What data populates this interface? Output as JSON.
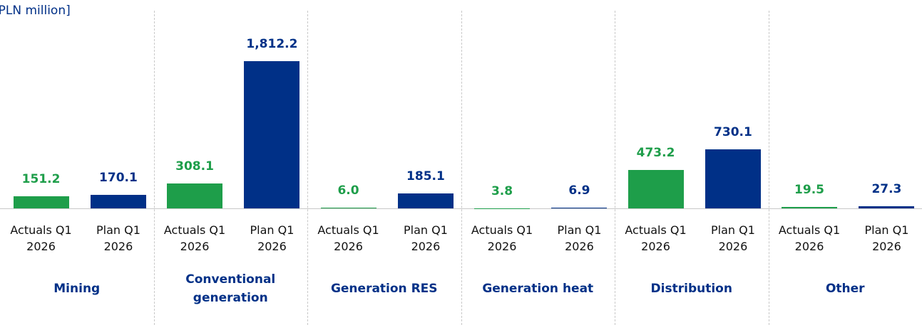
{
  "chart_data": {
    "type": "bar",
    "title": "[PLN million]",
    "categories": [
      "Mining",
      "Conventional generation",
      "Generation RES",
      "Generation heat",
      "Distribution",
      "Other"
    ],
    "series": [
      {
        "name": "Actuals Q1 2026",
        "color": "#1e9e4a",
        "values": [
          151.2,
          308.1,
          6.0,
          3.8,
          473.2,
          19.5
        ],
        "value_labels": [
          "151.2",
          "308.1",
          "6.0",
          "3.8",
          "473.2",
          "19.5"
        ]
      },
      {
        "name": "Plan Q1 2026",
        "color": "#003087",
        "values": [
          170.1,
          1812.2,
          185.1,
          6.9,
          730.1,
          27.3
        ],
        "value_labels": [
          "170.1",
          "1,812.2",
          "185.1",
          "6.9",
          "730.1",
          "27.3"
        ]
      }
    ]
  }
}
